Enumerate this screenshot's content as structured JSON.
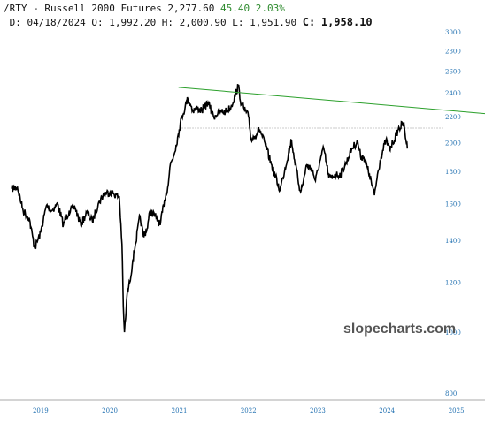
{
  "header": {
    "line1_prefix": "/RTY - Russell 2000 Futures 2,277.60",
    "line1_change": "45.40 2.03%",
    "line2_prefix": "D: 04/18/2024 O: 1,992.20 H: 2,000.90 L: 1,951.90",
    "line2_close_label": "C:",
    "line2_close_value": "1,958.10"
  },
  "watermark": "slopecharts.com",
  "colors": {
    "price": "#000000",
    "trendline": "#2ca02c",
    "support": "#999999",
    "axis_text": "#1f6fb0"
  },
  "chart_data": {
    "type": "line",
    "title": "/RTY - Russell 2000 Futures",
    "yscale": "log",
    "ylim": [
      780,
      3100
    ],
    "xlim": [
      "2018-06-01",
      "2025-06-01"
    ],
    "y_ticks": [
      3000,
      2800,
      2600,
      2400,
      2200,
      2000,
      1800,
      1600,
      1400,
      1200,
      1000,
      800
    ],
    "x_ticks": [
      "2019",
      "2020",
      "2021",
      "2022",
      "2023",
      "2024",
      "2025"
    ],
    "series": [
      {
        "x": [
          "2018-08-01",
          "2018-09-01",
          "2018-10-01",
          "2018-11-01",
          "2018-12-01",
          "2019-01-01",
          "2019-02-01",
          "2019-03-01",
          "2019-04-01",
          "2019-05-01",
          "2019-06-01",
          "2019-07-01",
          "2019-08-01",
          "2019-09-01",
          "2019-10-01",
          "2019-11-01",
          "2019-12-01",
          "2020-01-02",
          "2020-01-21",
          "2020-02-20",
          "2020-03-05",
          "2020-03-12",
          "2020-03-18",
          "2020-03-24",
          "2020-04-01",
          "2020-04-15",
          "2020-05-01",
          "2020-05-15",
          "2020-06-08",
          "2020-06-26",
          "2020-07-15",
          "2020-08-01",
          "2020-09-01",
          "2020-09-23",
          "2020-10-15",
          "2020-11-01",
          "2020-11-15",
          "2020-12-01",
          "2020-12-15",
          "2021-01-01",
          "2021-01-15",
          "2021-02-01",
          "2021-02-15",
          "2021-03-01",
          "2021-03-15",
          "2021-04-01",
          "2021-05-01",
          "2021-06-01",
          "2021-07-01",
          "2021-08-01",
          "2021-09-01",
          "2021-10-01",
          "2021-11-08",
          "2021-11-25",
          "2021-12-15",
          "2022-01-01",
          "2022-01-15",
          "2022-02-01",
          "2022-03-01",
          "2022-04-01",
          "2022-05-01",
          "2022-06-16",
          "2022-07-01",
          "2022-08-16",
          "2022-09-01",
          "2022-09-30",
          "2022-10-15",
          "2022-11-01",
          "2022-12-01",
          "2022-12-20",
          "2023-01-15",
          "2023-02-02",
          "2023-03-01",
          "2023-03-15",
          "2023-04-01",
          "2023-05-01",
          "2023-06-01",
          "2023-07-01",
          "2023-07-31",
          "2023-08-15",
          "2023-09-01",
          "2023-10-01",
          "2023-10-27",
          "2023-11-15",
          "2023-12-01",
          "2023-12-27",
          "2024-01-15",
          "2024-02-01",
          "2024-03-01",
          "2024-03-28",
          "2024-04-18"
        ],
        "y": [
          1690,
          1700,
          1560,
          1520,
          1360,
          1440,
          1590,
          1560,
          1600,
          1480,
          1560,
          1580,
          1480,
          1550,
          1500,
          1600,
          1660,
          1670,
          1660,
          1640,
          1380,
          1100,
          1000,
          1050,
          1150,
          1200,
          1300,
          1380,
          1530,
          1420,
          1460,
          1560,
          1520,
          1480,
          1620,
          1700,
          1850,
          1900,
          1980,
          2100,
          2200,
          2280,
          2350,
          2300,
          2250,
          2270,
          2250,
          2320,
          2200,
          2240,
          2240,
          2280,
          2460,
          2300,
          2250,
          2200,
          2020,
          2050,
          2100,
          1980,
          1850,
          1680,
          1760,
          2020,
          1880,
          1680,
          1720,
          1840,
          1820,
          1740,
          1880,
          1960,
          1760,
          1760,
          1780,
          1780,
          1860,
          1960,
          2010,
          1900,
          1900,
          1780,
          1650,
          1800,
          1900,
          2020,
          1950,
          2000,
          2100,
          2150,
          1958
        ]
      }
    ],
    "annotations": [
      {
        "type": "trendline",
        "from": [
          "2020-12-28",
          2450
        ],
        "to": [
          "2025-06-01",
          2225
        ]
      },
      {
        "type": "hline",
        "y": 2110
      }
    ]
  }
}
